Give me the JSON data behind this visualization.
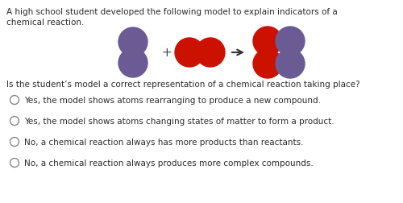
{
  "title_text": "A high school student developed the following model to explain indicators of a\nchemical reaction.",
  "question_text": "Is the student’s model a correct representation of a chemical reaction taking place?",
  "options": [
    "Yes, the model shows atoms rearranging to produce a new compound.",
    "Yes, the model shows atoms changing states of matter to form a product.",
    "No, a chemical reaction always has more products than reactants.",
    "No, a chemical reaction always produces more complex compounds."
  ],
  "background_color": "#ffffff",
  "text_color": "#2a2a2a",
  "purple_color": "#6b5b95",
  "red_color": "#cc1100",
  "title_fontsize": 7.5,
  "question_fontsize": 7.5,
  "option_fontsize": 7.5
}
